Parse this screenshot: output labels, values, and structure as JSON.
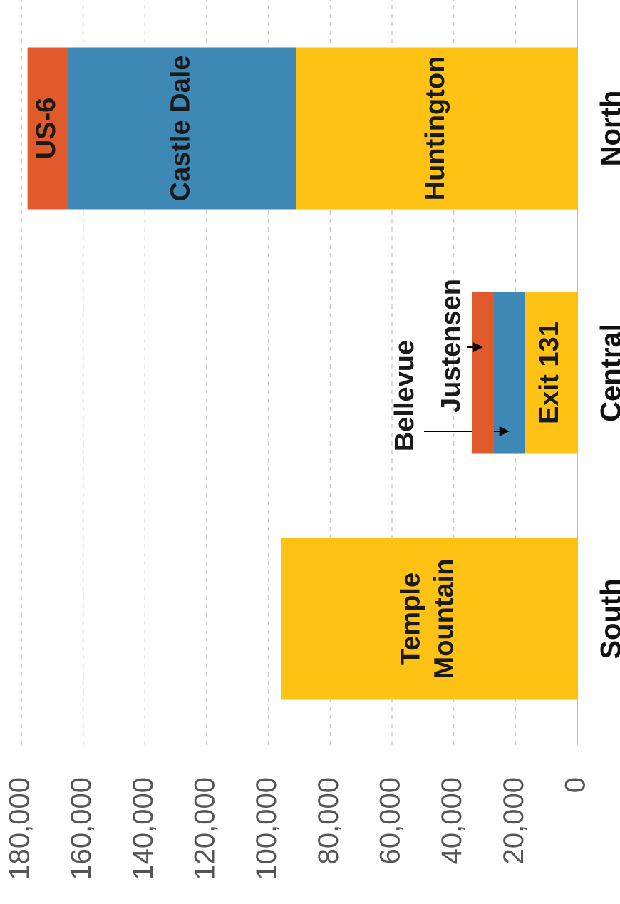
{
  "chart_data": {
    "type": "stacked_bar",
    "categories": [
      "South",
      "Central",
      "North"
    ],
    "segments": [
      [
        {
          "lines": [
            "Temple",
            "Mountain"
          ],
          "value": 96000,
          "color": "#FDC214"
        }
      ],
      [
        {
          "lines": [
            "Exit 131"
          ],
          "value": 17000,
          "color": "#FDC214"
        },
        {
          "lines": [
            "Bellevue"
          ],
          "value": 10000,
          "color": "#3E88B5",
          "label_position": "outside"
        },
        {
          "lines": [
            "Justensen"
          ],
          "value": 7000,
          "color": "#E05A2B",
          "label_position": "outside"
        }
      ],
      [
        {
          "lines": [
            "Huntington"
          ],
          "value": 91000,
          "color": "#FDC214"
        },
        {
          "lines": [
            "Castle Dale"
          ],
          "value": 74000,
          "color": "#3E88B5"
        },
        {
          "lines": [
            "US-6"
          ],
          "value": 13000,
          "color": "#E05A2B"
        }
      ]
    ],
    "ylim": [
      0,
      180000
    ],
    "yticks": [
      0,
      {
        "value": 20000,
        "label": "20,000"
      },
      {
        "value": 40000,
        "label": "40,000"
      },
      {
        "value": 60000,
        "label": "60,000"
      },
      {
        "value": 80000,
        "label": "80,000"
      },
      {
        "value": 100000,
        "label": "100,000"
      },
      {
        "value": 120000,
        "label": "120,000"
      },
      {
        "value": 140000,
        "label": "140,000"
      },
      {
        "value": 160000,
        "label": "160,000"
      },
      {
        "value": 180000,
        "label": "180,000"
      }
    ],
    "grid": true
  }
}
